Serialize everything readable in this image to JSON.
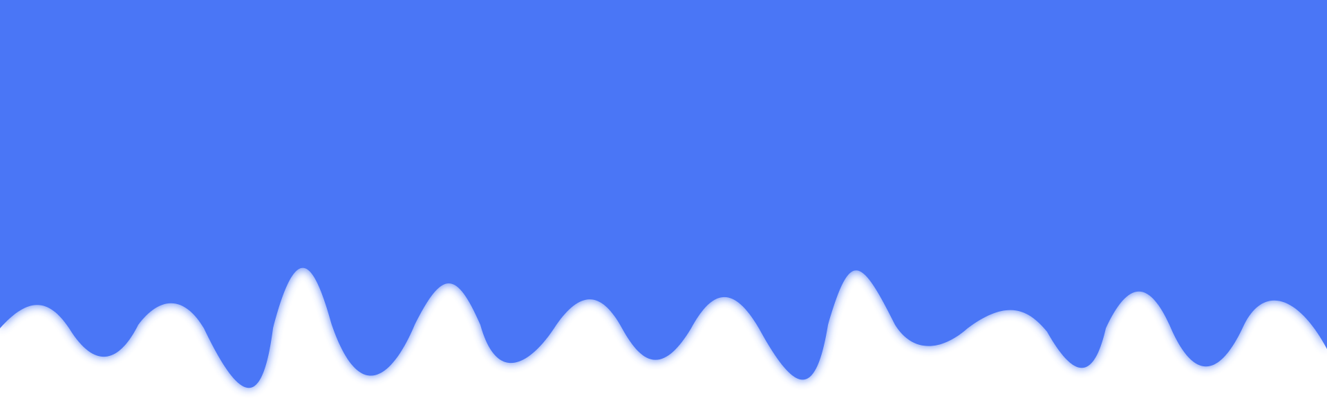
{
  "colors": {
    "background": "#ffffff",
    "wave_fill": "#4a76f6",
    "wave_glow": "#4a76f6"
  },
  "shape": {
    "name": "dripping-wave-banner"
  }
}
